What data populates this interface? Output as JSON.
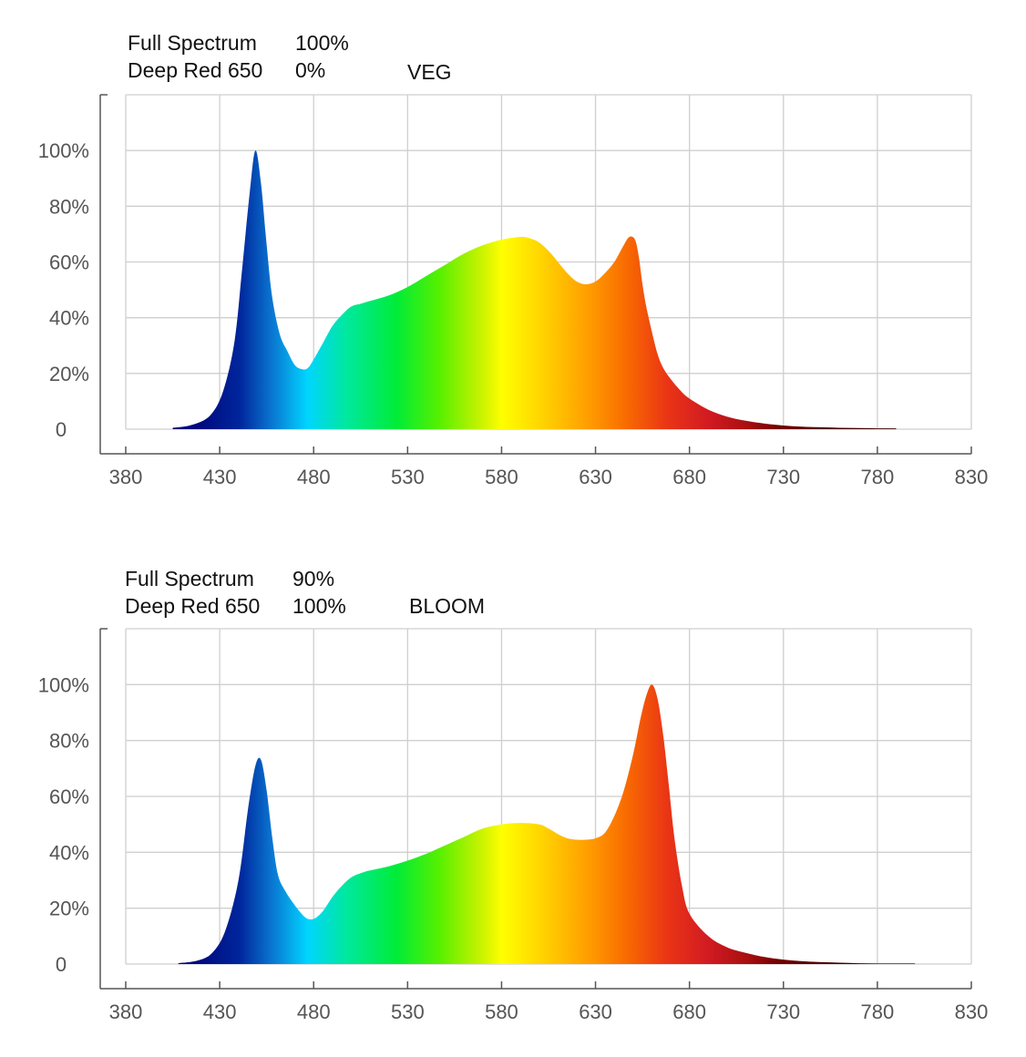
{
  "chart_data": [
    {
      "type": "area",
      "header": {
        "row1_label": "Full Spectrum",
        "row1_value": "100%",
        "row2_label": "Deep Red 650",
        "row2_value": "0%",
        "mode": "VEG"
      },
      "xlim": [
        380,
        830
      ],
      "ylim": [
        0,
        120
      ],
      "x_ticks": [
        "380",
        "430",
        "480",
        "530",
        "580",
        "630",
        "680",
        "730",
        "780",
        "830"
      ],
      "y_ticks": [
        "0",
        "20%",
        "40%",
        "60%",
        "80%",
        "100%"
      ],
      "grid": true,
      "fill": "spectral wavelength gradient",
      "x": [
        405,
        415,
        425,
        432,
        438,
        442,
        446,
        449,
        452,
        455,
        458,
        462,
        466,
        470,
        474,
        477,
        480,
        485,
        490,
        495,
        500,
        505,
        510,
        520,
        530,
        540,
        550,
        560,
        570,
        580,
        590,
        595,
        600,
        605,
        610,
        615,
        620,
        625,
        630,
        635,
        640,
        645,
        648,
        651,
        653,
        655,
        657,
        660,
        663,
        666,
        670,
        675,
        680,
        690,
        700,
        710,
        720,
        730,
        740,
        750,
        760,
        770,
        780,
        790
      ],
      "y": [
        0.5,
        1.5,
        5,
        14,
        32,
        58,
        85,
        100,
        88,
        66,
        47,
        34,
        28,
        23,
        21.5,
        22,
        25,
        31,
        37,
        41,
        44,
        45,
        46,
        48,
        51,
        55,
        59,
        63,
        66,
        68,
        69,
        68.5,
        67,
        64,
        60,
        56,
        53,
        52,
        53,
        56,
        60,
        66,
        69,
        68,
        62,
        52,
        44,
        35,
        27,
        22,
        18,
        14,
        11,
        7,
        4.5,
        3,
        2,
        1.3,
        0.9,
        0.7,
        0.5,
        0.4,
        0.3,
        0.3
      ]
    },
    {
      "type": "area",
      "header": {
        "row1_label": "Full Spectrum",
        "row1_value": "90%",
        "row2_label": "Deep Red 650",
        "row2_value": "100%",
        "mode": "BLOOM"
      },
      "xlim": [
        380,
        830
      ],
      "ylim": [
        0,
        120
      ],
      "x_ticks": [
        "380",
        "430",
        "480",
        "530",
        "580",
        "630",
        "680",
        "730",
        "780",
        "830"
      ],
      "y_ticks": [
        "0",
        "20%",
        "40%",
        "60%",
        "80%",
        "100%"
      ],
      "grid": true,
      "fill": "spectral wavelength gradient",
      "x": [
        408,
        418,
        426,
        433,
        440,
        445,
        449,
        452,
        455,
        458,
        461,
        465,
        470,
        475,
        478,
        481,
        485,
        490,
        495,
        500,
        505,
        510,
        520,
        530,
        540,
        550,
        560,
        570,
        580,
        590,
        600,
        605,
        610,
        615,
        620,
        625,
        630,
        635,
        640,
        645,
        650,
        654,
        657,
        660,
        663,
        666,
        669,
        672,
        676,
        680,
        690,
        700,
        710,
        720,
        730,
        740,
        750,
        760,
        770,
        780,
        790,
        800
      ],
      "y": [
        0.3,
        1.2,
        4,
        12,
        30,
        55,
        71,
        73,
        62,
        45,
        32,
        26,
        21,
        17,
        16,
        16.5,
        19,
        24,
        28,
        31,
        32.5,
        33.5,
        35,
        37,
        39.5,
        42.5,
        45.5,
        48.5,
        50,
        50.5,
        50,
        48.5,
        46.5,
        45,
        44.5,
        44.5,
        45,
        47,
        53,
        62,
        75,
        88,
        96,
        100,
        95,
        82,
        64,
        45,
        28,
        18,
        10,
        6,
        4,
        2.5,
        1.6,
        1,
        0.7,
        0.5,
        0.3,
        0.2,
        0.2,
        0.2
      ]
    }
  ]
}
